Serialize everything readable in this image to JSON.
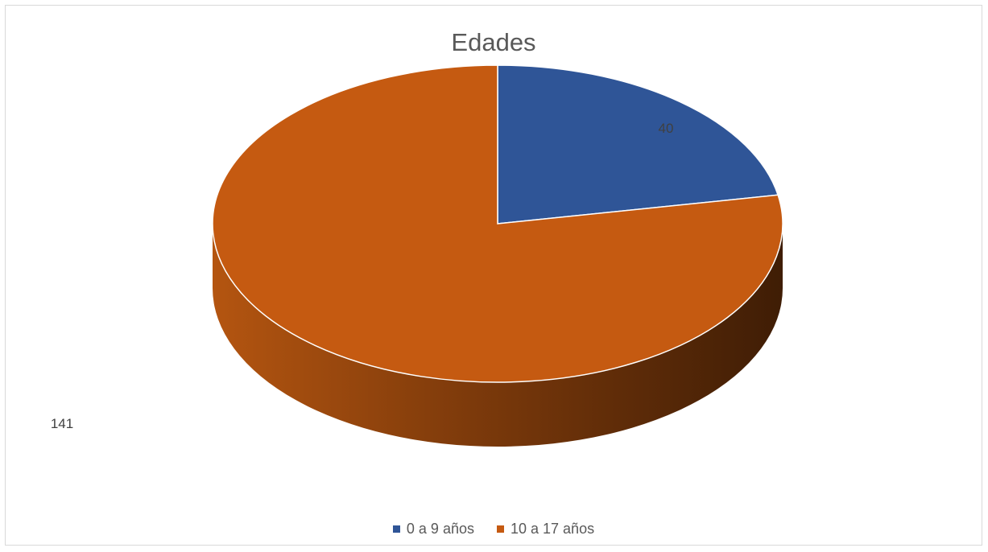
{
  "chart_data": {
    "type": "pie",
    "title": "Edades",
    "categories": [
      "0 a 9 años",
      "10 a 17 años"
    ],
    "values": [
      40,
      141
    ],
    "colors": [
      "#2f5597",
      "#c55a11"
    ],
    "legend_position": "bottom",
    "style": "3d"
  }
}
